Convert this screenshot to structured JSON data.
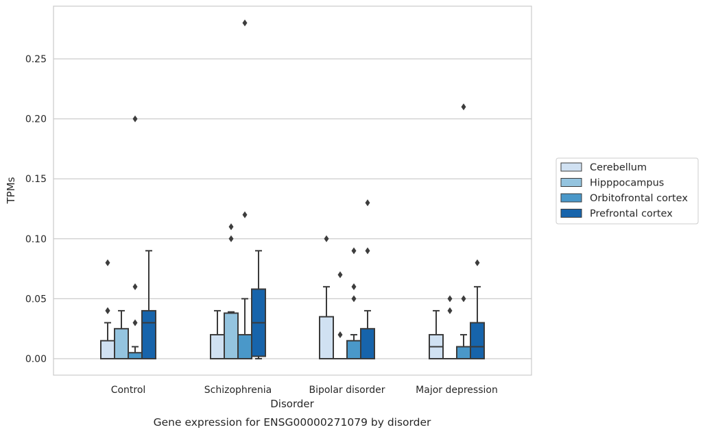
{
  "chart_data": {
    "type": "box",
    "title": "",
    "caption": "Gene expression for ENSG00000271079 by disorder",
    "xlabel": "Disorder",
    "ylabel": "TPMs",
    "ylim": [
      -0.013,
      0.294
    ],
    "yticks": [
      "0.00",
      "0.05",
      "0.10",
      "0.15",
      "0.20",
      "0.25"
    ],
    "ytick_values": [
      0,
      0.05,
      0.1,
      0.15,
      0.2,
      0.25
    ],
    "grid": "horizontal",
    "legend_position": "right",
    "categories": [
      "Control",
      "Schizophrenia",
      "Bipolar disorder",
      "Major depression"
    ],
    "series": [
      {
        "name": "Cerebellum",
        "color": "#d0e1f2",
        "boxes": [
          {
            "whislo": 0.0,
            "q1": 0.0,
            "med": 0.0,
            "q3": 0.015,
            "whishi": 0.03,
            "fliers": [
              0.04,
              0.04,
              0.08
            ]
          },
          {
            "whislo": 0.0,
            "q1": 0.0,
            "med": 0.0,
            "q3": 0.02,
            "whishi": 0.04,
            "fliers": []
          },
          {
            "whislo": 0.0,
            "q1": 0.0,
            "med": 0.0,
            "q3": 0.035,
            "whishi": 0.06,
            "fliers": [
              0.1
            ]
          },
          {
            "whislo": 0.0,
            "q1": 0.0,
            "med": 0.01,
            "q3": 0.02,
            "whishi": 0.04,
            "fliers": []
          }
        ]
      },
      {
        "name": "Hipppocampus",
        "color": "#94c4df",
        "boxes": [
          {
            "whislo": 0.0,
            "q1": 0.0,
            "med": 0.0,
            "q3": 0.025,
            "whishi": 0.04,
            "fliers": []
          },
          {
            "whislo": 0.0,
            "q1": 0.0,
            "med": 0.0,
            "q3": 0.038,
            "whishi": 0.039,
            "fliers": [
              0.1,
              0.11
            ]
          },
          {
            "whislo": 0.0,
            "q1": 0.0,
            "med": 0.0,
            "q3": 0.0,
            "whishi": 0.0,
            "fliers": [
              0.02,
              0.07
            ]
          },
          {
            "whislo": 0.0,
            "q1": 0.0,
            "med": 0.0,
            "q3": 0.0,
            "whishi": 0.0,
            "fliers": [
              0.04,
              0.05
            ]
          }
        ]
      },
      {
        "name": "Orbitofrontal cortex",
        "color": "#4a98c9",
        "boxes": [
          {
            "whislo": 0.0,
            "q1": 0.0,
            "med": 0.0,
            "q3": 0.005,
            "whishi": 0.01,
            "fliers": [
              0.03,
              0.06,
              0.2
            ]
          },
          {
            "whislo": 0.0,
            "q1": 0.0,
            "med": 0.0,
            "q3": 0.02,
            "whishi": 0.05,
            "fliers": [
              0.12,
              0.28
            ]
          },
          {
            "whislo": 0.0,
            "q1": 0.0,
            "med": 0.0,
            "q3": 0.015,
            "whishi": 0.02,
            "fliers": [
              0.05,
              0.06,
              0.09
            ]
          },
          {
            "whislo": 0.0,
            "q1": 0.0,
            "med": 0.0,
            "q3": 0.01,
            "whishi": 0.02,
            "fliers": [
              0.05,
              0.21
            ]
          }
        ]
      },
      {
        "name": "Prefrontal cortex",
        "color": "#1764ab",
        "boxes": [
          {
            "whislo": 0.0,
            "q1": 0.0,
            "med": 0.03,
            "q3": 0.04,
            "whishi": 0.09,
            "fliers": []
          },
          {
            "whislo": 0.0,
            "q1": 0.002,
            "med": 0.03,
            "q3": 0.058,
            "whishi": 0.09,
            "fliers": []
          },
          {
            "whislo": 0.0,
            "q1": 0.0,
            "med": 0.0,
            "q3": 0.025,
            "whishi": 0.04,
            "fliers": [
              0.09,
              0.13
            ]
          },
          {
            "whislo": 0.0,
            "q1": 0.0,
            "med": 0.01,
            "q3": 0.03,
            "whishi": 0.06,
            "fliers": [
              0.08
            ]
          }
        ]
      }
    ]
  }
}
